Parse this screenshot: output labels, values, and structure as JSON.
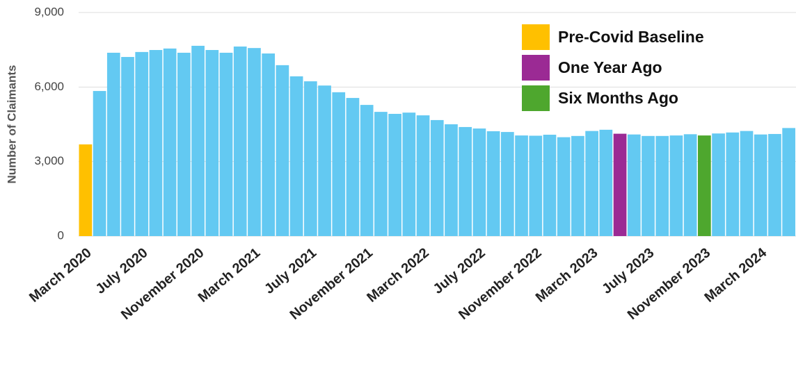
{
  "chart_data": {
    "type": "bar",
    "y_axis_label": "Number of Claimants",
    "categories": [
      "March 2020",
      null,
      null,
      null,
      "July 2020",
      null,
      null,
      null,
      "November 2020",
      null,
      null,
      null,
      "March 2021",
      null,
      null,
      null,
      "July 2021",
      null,
      null,
      null,
      "November 2021",
      null,
      null,
      null,
      "March 2022",
      null,
      null,
      null,
      "July 2022",
      null,
      null,
      null,
      "November 2022",
      null,
      null,
      null,
      "March 2023",
      null,
      null,
      null,
      "July 2023",
      null,
      null,
      null,
      "November 2023",
      null,
      null,
      null,
      "March 2024",
      null,
      null
    ],
    "values": [
      3690,
      5840,
      7380,
      7210,
      7410,
      7490,
      7550,
      7380,
      7660,
      7490,
      7380,
      7630,
      7570,
      7350,
      6880,
      6430,
      6230,
      6060,
      5790,
      5560,
      5280,
      5000,
      4920,
      4970,
      4860,
      4670,
      4500,
      4390,
      4330,
      4220,
      4190,
      4050,
      4040,
      4080,
      3980,
      4030,
      4230,
      4280,
      4120,
      4090,
      4030,
      4030,
      4050,
      4100,
      4050,
      4130,
      4170,
      4230,
      4090,
      4110,
      4350
    ],
    "color": "#63c9f2",
    "highlight_colors": {
      "0": "#ffc000",
      "38": "#9b2a94",
      "44": "#4ea72e"
    },
    "legend": [
      {
        "name": "Pre-Covid Baseline",
        "color": "#ffc000"
      },
      {
        "name": "One Year Ago",
        "color": "#9b2a94"
      },
      {
        "name": "Six Months Ago",
        "color": "#4ea72e"
      }
    ],
    "ylim": [
      0,
      9000
    ],
    "yticks": [
      0,
      {
        "value": 3000,
        "label": "3,000"
      },
      {
        "value": 6000,
        "label": "6,000"
      },
      {
        "value": 9000,
        "label": "9,000"
      }
    ],
    "grid": true
  }
}
